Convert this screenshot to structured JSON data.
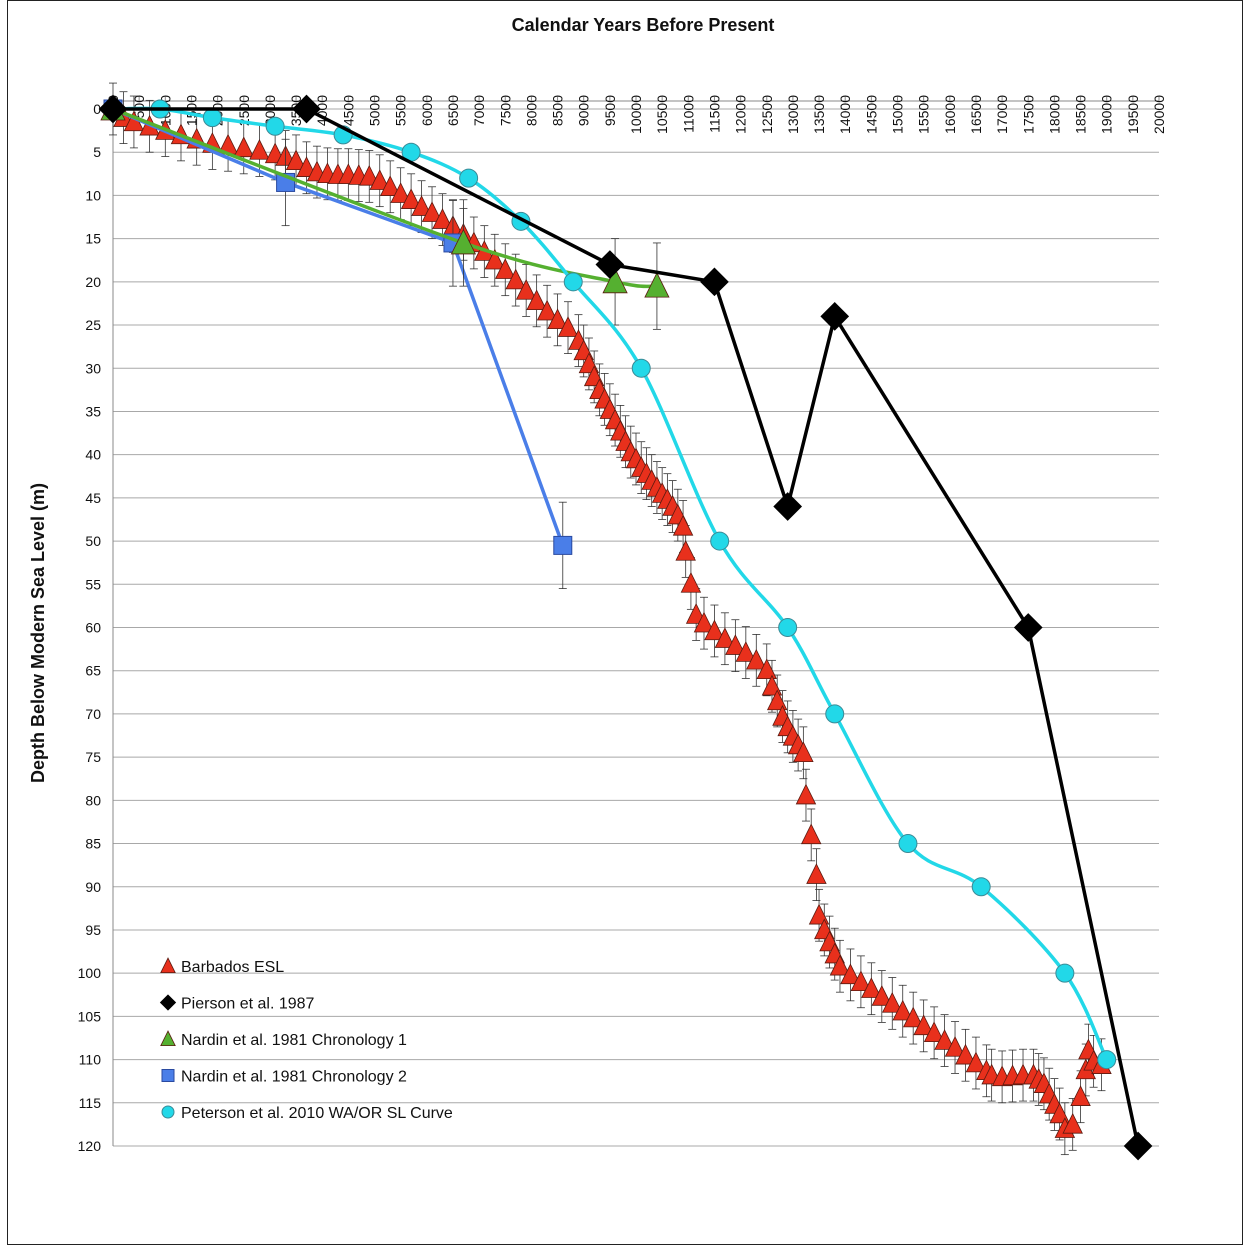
{
  "chart_data": {
    "type": "line",
    "title": "Calendar Years Before Present",
    "ylabel": "Depth Below Modern Sea Level (m)",
    "xlabel": "",
    "x_axis_position": "top",
    "y_inverted": true,
    "xlim": [
      0,
      20000
    ],
    "ylim": [
      0,
      120
    ],
    "x_ticks": [
      "0",
      "500",
      "1000",
      "1500",
      "2000",
      "2500",
      "3000",
      "3500",
      "4000",
      "4500",
      "5000",
      "5500",
      "6000",
      "6500",
      "7000",
      "7500",
      "8000",
      "8500",
      "9000",
      "9500",
      "10000",
      "10500",
      "11000",
      "11500",
      "12000",
      "12500",
      "13000",
      "13500",
      "14000",
      "14500",
      "15000",
      "15500",
      "16000",
      "16500",
      "17000",
      "17500",
      "18000",
      "18500",
      "19000",
      "19500",
      "20000"
    ],
    "y_ticks": [
      "0",
      "5",
      "10",
      "15",
      "20",
      "25",
      "30",
      "35",
      "40",
      "45",
      "50",
      "55",
      "60",
      "65",
      "70",
      "75",
      "80",
      "85",
      "90",
      "95",
      "100",
      "105",
      "110",
      "115",
      "120"
    ],
    "grid": "horizontal",
    "legend_position": "bottom-left",
    "series": [
      {
        "name": "Barbados ESL",
        "marker": "triangle",
        "color": "#e8301c",
        "line": false,
        "error_bars": true,
        "points": [
          [
            0,
            0
          ],
          [
            200,
            1
          ],
          [
            400,
            1.5
          ],
          [
            700,
            2
          ],
          [
            1000,
            2.5
          ],
          [
            1300,
            3
          ],
          [
            1600,
            3.5
          ],
          [
            1900,
            4
          ],
          [
            2200,
            4.2
          ],
          [
            2500,
            4.5
          ],
          [
            2800,
            4.8
          ],
          [
            3100,
            5.2
          ],
          [
            3300,
            5.5
          ],
          [
            3500,
            6
          ],
          [
            3700,
            6.8
          ],
          [
            3900,
            7.3
          ],
          [
            4100,
            7.5
          ],
          [
            4300,
            7.6
          ],
          [
            4500,
            7.6
          ],
          [
            4700,
            7.7
          ],
          [
            4900,
            7.8
          ],
          [
            5100,
            8.3
          ],
          [
            5300,
            9
          ],
          [
            5500,
            9.8
          ],
          [
            5700,
            10.5
          ],
          [
            5900,
            11.3
          ],
          [
            6100,
            12
          ],
          [
            6300,
            12.8
          ],
          [
            6500,
            13.6
          ],
          [
            6700,
            14.5
          ],
          [
            6900,
            15.5
          ],
          [
            7100,
            16.5
          ],
          [
            7300,
            17.5
          ],
          [
            7500,
            18.6
          ],
          [
            7700,
            19.8
          ],
          [
            7900,
            21
          ],
          [
            8100,
            22.2
          ],
          [
            8300,
            23.4
          ],
          [
            8500,
            24.4
          ],
          [
            8700,
            25.3
          ],
          [
            8900,
            26.8
          ],
          [
            9000,
            28
          ],
          [
            9100,
            29.5
          ],
          [
            9200,
            31
          ],
          [
            9300,
            32.5
          ],
          [
            9400,
            33.6
          ],
          [
            9500,
            34.8
          ],
          [
            9600,
            36
          ],
          [
            9700,
            37.3
          ],
          [
            9800,
            38.5
          ],
          [
            9900,
            39.7
          ],
          [
            10000,
            40.5
          ],
          [
            10100,
            41.5
          ],
          [
            10200,
            42.2
          ],
          [
            10300,
            43
          ],
          [
            10400,
            43.8
          ],
          [
            10500,
            44.5
          ],
          [
            10600,
            45.2
          ],
          [
            10700,
            46
          ],
          [
            10800,
            47
          ],
          [
            10900,
            48.3
          ],
          [
            10950,
            51.2
          ],
          [
            11050,
            54.9
          ],
          [
            11150,
            58.5
          ],
          [
            11300,
            59.5
          ],
          [
            11500,
            60.4
          ],
          [
            11700,
            61.3
          ],
          [
            11900,
            62.1
          ],
          [
            12100,
            62.9
          ],
          [
            12300,
            63.8
          ],
          [
            12500,
            64.9
          ],
          [
            12600,
            66.8
          ],
          [
            12700,
            68.5
          ],
          [
            12800,
            70.3
          ],
          [
            12900,
            71.5
          ],
          [
            13000,
            72.6
          ],
          [
            13100,
            73.6
          ],
          [
            13200,
            74.5
          ],
          [
            13250,
            79.4
          ],
          [
            13350,
            84
          ],
          [
            13450,
            88.6
          ],
          [
            13500,
            93.3
          ],
          [
            13600,
            95
          ],
          [
            13700,
            96.4
          ],
          [
            13800,
            97.8
          ],
          [
            13900,
            99.2
          ],
          [
            14100,
            100.2
          ],
          [
            14300,
            101
          ],
          [
            14500,
            101.8
          ],
          [
            14700,
            102.7
          ],
          [
            14900,
            103.5
          ],
          [
            15100,
            104.4
          ],
          [
            15300,
            105.2
          ],
          [
            15500,
            106.1
          ],
          [
            15700,
            106.9
          ],
          [
            15900,
            107.8
          ],
          [
            16100,
            108.6
          ],
          [
            16300,
            109.5
          ],
          [
            16500,
            110.4
          ],
          [
            16700,
            111.3
          ],
          [
            16800,
            111.8
          ],
          [
            17000,
            112
          ],
          [
            17200,
            111.9
          ],
          [
            17400,
            111.8
          ],
          [
            17600,
            111.8
          ],
          [
            17700,
            112.3
          ],
          [
            17800,
            112.8
          ],
          [
            17900,
            114
          ],
          [
            18000,
            115.2
          ],
          [
            18100,
            116.3
          ],
          [
            18200,
            118
          ],
          [
            18350,
            117.5
          ],
          [
            18500,
            114.3
          ],
          [
            18600,
            111.2
          ],
          [
            18650,
            108.9
          ],
          [
            18750,
            110.2
          ],
          [
            18900,
            110.6
          ]
        ]
      },
      {
        "name": "Pierson et al. 1987",
        "marker": "diamond",
        "color": "#000000",
        "line": true,
        "points": [
          [
            0,
            0
          ],
          [
            3700,
            0
          ],
          [
            9500,
            18
          ],
          [
            11500,
            20
          ],
          [
            12900,
            46
          ],
          [
            13800,
            24
          ],
          [
            17500,
            60
          ],
          [
            19600,
            120
          ]
        ]
      },
      {
        "name": "Nardin et al. 1981 Chronology 1",
        "marker": "triangle",
        "color": "#55b030",
        "line": true,
        "error_bars": true,
        "points": [
          [
            0,
            0
          ],
          [
            6700,
            15.5
          ],
          [
            9600,
            20
          ],
          [
            10400,
            20.5
          ]
        ]
      },
      {
        "name": "Nardin et al. 1981 Chronology 2",
        "marker": "square",
        "color": "#4a7ee8",
        "line": true,
        "error_bars": true,
        "points": [
          [
            0,
            0
          ],
          [
            3300,
            8.5
          ],
          [
            6500,
            15.5
          ],
          [
            8600,
            50.5
          ]
        ]
      },
      {
        "name": "Peterson et al. 2010 WA/OR SL Curve",
        "marker": "circle",
        "color": "#22d8e8",
        "line": true,
        "points": [
          [
            0,
            0
          ],
          [
            900,
            0
          ],
          [
            1900,
            1
          ],
          [
            3100,
            2
          ],
          [
            4400,
            3
          ],
          [
            5700,
            5
          ],
          [
            6800,
            8
          ],
          [
            7800,
            13
          ],
          [
            8800,
            20
          ],
          [
            10100,
            30
          ],
          [
            11600,
            50
          ],
          [
            12900,
            60
          ],
          [
            13800,
            70
          ],
          [
            15200,
            85
          ],
          [
            16600,
            90
          ],
          [
            18200,
            100
          ],
          [
            19000,
            110
          ]
        ]
      }
    ]
  }
}
